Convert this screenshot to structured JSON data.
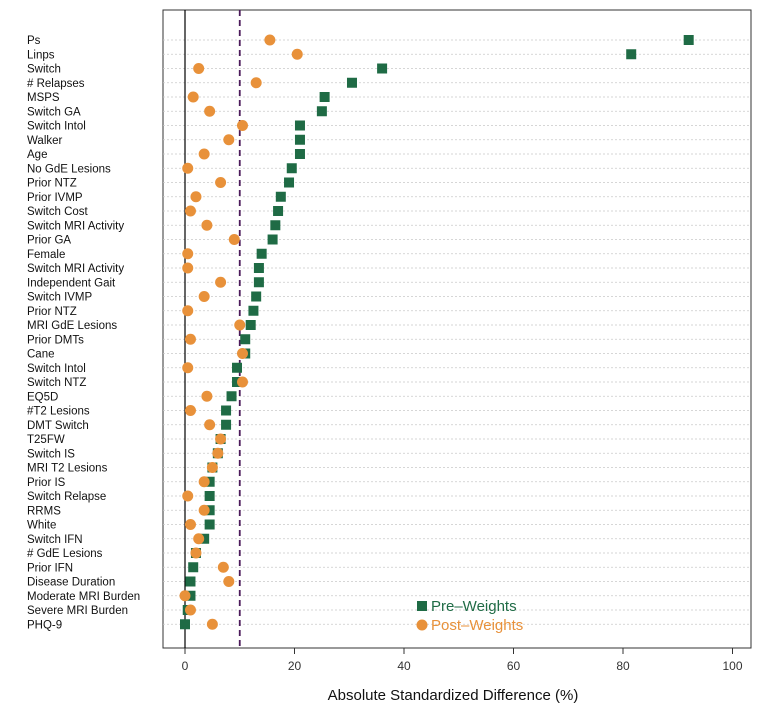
{
  "chart_data": {
    "type": "scatter",
    "xlabel": "Absolute Standardized Difference (%)",
    "xlim": [
      -4,
      104
    ],
    "xticks": [
      0,
      20,
      40,
      60,
      80,
      100
    ],
    "reference_lines": [
      0,
      10
    ],
    "categories": [
      "Ps",
      "Linps",
      "Switch",
      "# Relapses",
      "MSPS",
      "Switch GA",
      "Switch Intol",
      "Walker",
      "Age",
      "No GdE Lesions",
      "Prior NTZ",
      "Prior IVMP",
      "Switch Cost",
      "Switch MRI Activity",
      "Prior GA",
      "Female",
      "Switch MRI Activity",
      "Independent Gait",
      "Switch IVMP",
      "Prior NTZ",
      "MRI GdE Lesions",
      "Prior DMTs",
      "Cane",
      "Switch Intol",
      "Switch NTZ",
      "EQ5D",
      "#T2 Lesions",
      "DMT Switch",
      "T25FW",
      "Switch IS",
      "MRI T2 Lesions",
      "Prior IS",
      "Switch Relapse",
      "RRMS",
      "White",
      "Switch IFN",
      "# GdE Lesions",
      "Prior IFN",
      "Disease Duration",
      "Moderate MRI Burden",
      "Severe MRI Burden",
      "PHQ-9"
    ],
    "series": [
      {
        "name": "Pre–Weights",
        "marker": "square",
        "color": "#1f6b45",
        "values": [
          92,
          81.5,
          36,
          30.5,
          25.5,
          25,
          21,
          21,
          21,
          19.5,
          19,
          17.5,
          17,
          16.5,
          16,
          14,
          13.5,
          13.5,
          13,
          12.5,
          12,
          11,
          11,
          9.5,
          9.5,
          8.5,
          7.5,
          7.5,
          6.5,
          6,
          5,
          4.5,
          4.5,
          4.5,
          4.5,
          3.5,
          2,
          1.5,
          1,
          1,
          0.5,
          0
        ]
      },
      {
        "name": "Post–Weights",
        "marker": "circle",
        "color": "#e8913a",
        "values": [
          15.5,
          20.5,
          2.5,
          13,
          1.5,
          4.5,
          10.5,
          8,
          3.5,
          0.5,
          6.5,
          2,
          1,
          4,
          9,
          0.5,
          0.5,
          6.5,
          3.5,
          0.5,
          10,
          1,
          10.5,
          0.5,
          10.5,
          4,
          1,
          4.5,
          6.5,
          6,
          5,
          3.5,
          0.5,
          3.5,
          1,
          2.5,
          2,
          7,
          8,
          0,
          1,
          5
        ]
      }
    ],
    "legend": "bottom-center",
    "grid": "horizontal dotted"
  }
}
